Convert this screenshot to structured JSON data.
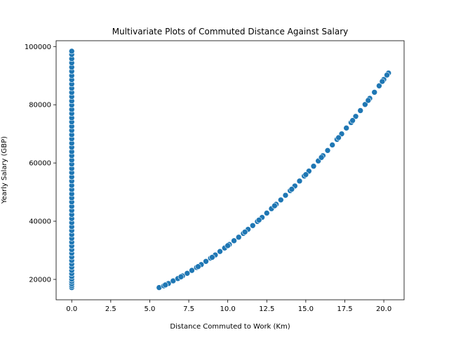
{
  "chart_data": {
    "type": "scatter",
    "title": "Multivariate Plots of Commuted Distance Against Salary",
    "xlabel": "Distance Commuted to Work (Km)",
    "ylabel": "Yearly Salary (GBP)",
    "xlim": [
      -1.0,
      21.3
    ],
    "ylim": [
      13000,
      102000
    ],
    "xticks": [
      0.0,
      2.5,
      5.0,
      7.5,
      10.0,
      12.5,
      15.0,
      17.5,
      20.0
    ],
    "xtick_labels": [
      "0.0",
      "2.5",
      "5.0",
      "7.5",
      "10.0",
      "12.5",
      "15.0",
      "17.5",
      "20.0"
    ],
    "yticks": [
      20000,
      40000,
      60000,
      80000,
      100000
    ],
    "ytick_labels": [
      "20000",
      "40000",
      "60000",
      "80000",
      "100000"
    ],
    "grid": false,
    "marker_color": "#1f77b4",
    "series": [
      {
        "points": [
          [
            0,
            17200
          ],
          [
            0,
            17800
          ],
          [
            0,
            18500
          ],
          [
            0,
            19300
          ],
          [
            0,
            20100
          ],
          [
            0,
            21000
          ],
          [
            0,
            22000
          ],
          [
            0,
            23100
          ],
          [
            0,
            24200
          ],
          [
            0,
            25300
          ],
          [
            0,
            26500
          ],
          [
            0,
            27700
          ],
          [
            0,
            29000
          ],
          [
            0,
            30200
          ],
          [
            0,
            31500
          ],
          [
            0,
            32800
          ],
          [
            0,
            34100
          ],
          [
            0,
            35400
          ],
          [
            0,
            36800
          ],
          [
            0,
            38100
          ],
          [
            0,
            39500
          ],
          [
            0,
            40900
          ],
          [
            0,
            42300
          ],
          [
            0,
            43700
          ],
          [
            0,
            45100
          ],
          [
            0,
            46600
          ],
          [
            0,
            48000
          ],
          [
            0,
            49400
          ],
          [
            0,
            50900
          ],
          [
            0,
            52300
          ],
          [
            0,
            53800
          ],
          [
            0,
            55200
          ],
          [
            0,
            56700
          ],
          [
            0,
            58100
          ],
          [
            0,
            59600
          ],
          [
            0,
            61000
          ],
          [
            0,
            62500
          ],
          [
            0,
            63900
          ],
          [
            0,
            65400
          ],
          [
            0,
            66800
          ],
          [
            0,
            68300
          ],
          [
            0,
            69700
          ],
          [
            0,
            71200
          ],
          [
            0,
            72600
          ],
          [
            0,
            74100
          ],
          [
            0,
            75500
          ],
          [
            0,
            77000
          ],
          [
            0,
            78400
          ],
          [
            0,
            79900
          ],
          [
            0,
            81300
          ],
          [
            0,
            82800
          ],
          [
            0,
            84200
          ],
          [
            0,
            85700
          ],
          [
            0,
            87100
          ],
          [
            0,
            88600
          ],
          [
            0,
            90000
          ],
          [
            0,
            91500
          ],
          [
            0,
            92900
          ],
          [
            0,
            94400
          ],
          [
            0,
            95800
          ],
          [
            0,
            97300
          ],
          [
            0,
            98400
          ],
          [
            5.6,
            17200
          ],
          [
            5.9,
            17800
          ],
          [
            6.2,
            18600
          ],
          [
            6.5,
            19500
          ],
          [
            6.8,
            20300
          ],
          [
            7.1,
            21200
          ],
          [
            7.4,
            22100
          ],
          [
            7.7,
            23100
          ],
          [
            8.0,
            24100
          ],
          [
            8.3,
            25100
          ],
          [
            8.6,
            26200
          ],
          [
            8.9,
            27300
          ],
          [
            9.2,
            28400
          ],
          [
            9.5,
            29600
          ],
          [
            9.8,
            30800
          ],
          [
            10.1,
            32000
          ],
          [
            10.4,
            33300
          ],
          [
            10.7,
            34500
          ],
          [
            11.0,
            35800
          ],
          [
            11.3,
            37200
          ],
          [
            11.6,
            38500
          ],
          [
            11.9,
            39900
          ],
          [
            12.2,
            41300
          ],
          [
            12.5,
            42800
          ],
          [
            12.8,
            44300
          ],
          [
            13.1,
            45800
          ],
          [
            13.4,
            47300
          ],
          [
            13.7,
            48900
          ],
          [
            14.0,
            50500
          ],
          [
            14.3,
            52100
          ],
          [
            14.6,
            53800
          ],
          [
            14.9,
            55500
          ],
          [
            15.2,
            57200
          ],
          [
            15.5,
            58900
          ],
          [
            15.8,
            60700
          ],
          [
            16.1,
            62500
          ],
          [
            16.4,
            64300
          ],
          [
            16.7,
            66200
          ],
          [
            17.0,
            68100
          ],
          [
            17.3,
            70000
          ],
          [
            17.6,
            72000
          ],
          [
            17.9,
            73900
          ],
          [
            18.2,
            76000
          ],
          [
            18.5,
            78000
          ],
          [
            18.8,
            80100
          ],
          [
            19.1,
            82200
          ],
          [
            19.4,
            84300
          ],
          [
            19.7,
            86500
          ],
          [
            20.0,
            88700
          ],
          [
            20.3,
            90900
          ],
          [
            6.0,
            18100
          ],
          [
            7.0,
            20900
          ],
          [
            8.1,
            24400
          ],
          [
            9.0,
            27600
          ],
          [
            10.0,
            31600
          ],
          [
            11.1,
            36300
          ],
          [
            12.0,
            40400
          ],
          [
            13.0,
            45300
          ],
          [
            14.1,
            51000
          ],
          [
            15.0,
            56000
          ],
          [
            16.0,
            61900
          ],
          [
            17.1,
            68700
          ],
          [
            18.0,
            74600
          ],
          [
            19.0,
            81500
          ],
          [
            19.9,
            88000
          ],
          [
            20.2,
            90200
          ]
        ]
      }
    ]
  }
}
